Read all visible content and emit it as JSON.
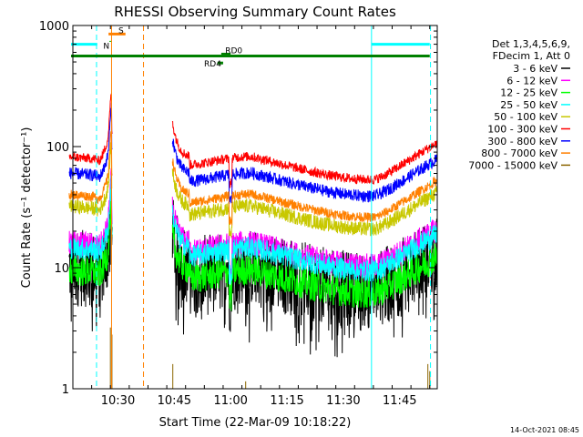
{
  "chart_data": {
    "type": "line",
    "title": "RHESSI Observing Summary Count Rates",
    "xlabel": "Start Time (22-Mar-09 10:18:22)",
    "ylabel": "Count Rate (s⁻¹ detector⁻¹)",
    "yscale": "log",
    "ylim": [
      1,
      1000
    ],
    "xlim_minutes": [
      0,
      97
    ],
    "x_ticks": [
      {
        "minute": 12,
        "label": "10:30"
      },
      {
        "minute": 27,
        "label": "10:45"
      },
      {
        "minute": 42,
        "label": "11:00"
      },
      {
        "minute": 57,
        "label": "11:15"
      },
      {
        "minute": 72,
        "label": "11:30"
      },
      {
        "minute": 87,
        "label": "11:45"
      }
    ],
    "y_ticks": [
      {
        "value": 1,
        "label": "1"
      },
      {
        "value": 10,
        "label": "10"
      },
      {
        "value": 100,
        "label": "100"
      },
      {
        "value": 1000,
        "label": "1000"
      }
    ],
    "legend": {
      "header1": "Det 1,3,4,5,6,9,",
      "header2": "FDecim 1, Att 0",
      "placement": "right"
    },
    "series": [
      {
        "name": "3 - 6 keV",
        "color": "#000000",
        "level": 10.0,
        "noise": 0.32,
        "spiky": true
      },
      {
        "name": "6 - 12 keV",
        "color": "#ff00ff",
        "level": 16.0,
        "noise": 0.1
      },
      {
        "name": "12 - 25 keV",
        "color": "#00ff00",
        "level": 9.5,
        "noise": 0.13
      },
      {
        "name": "25 - 50 keV",
        "color": "#00ffff",
        "level": 14.5,
        "noise": 0.09
      },
      {
        "name": "50 - 100 keV",
        "color": "#c8c800",
        "level": 32.0,
        "noise": 0.06
      },
      {
        "name": "100 - 300 keV",
        "color": "#ff0000",
        "level": 82.0,
        "noise": 0.04
      },
      {
        "name": "300 - 800 keV",
        "color": "#0000ff",
        "level": 60.0,
        "noise": 0.05
      },
      {
        "name": "800 - 7000 keV",
        "color": "#ff8000",
        "level": 40.0,
        "noise": 0.04
      },
      {
        "name": "7000 - 15000 keV",
        "color": "#8b6500",
        "level": 1.0,
        "noise": 0.0
      }
    ],
    "gaps": [
      [
        6.5,
        26.5
      ]
    ],
    "flags": [
      {
        "label": "",
        "color": "#00ffff",
        "value": 700,
        "x": [
          -1,
          6.5
        ]
      },
      {
        "label": "",
        "color": "#00ffff",
        "value": 700,
        "x": [
          79.5,
          95
        ]
      },
      {
        "label": "S",
        "color": "#ff8000",
        "value": 850,
        "x": [
          9.5,
          14
        ]
      },
      {
        "label": "N",
        "color": "#00c000",
        "value": 740,
        "x": [
          9.7,
          10.2
        ]
      },
      {
        "label": "",
        "color": "#008000",
        "value": 560,
        "x": [
          -1,
          95
        ]
      },
      {
        "label": "RD0",
        "color": "#008000",
        "value": 580,
        "x": [
          39.5,
          42
        ]
      },
      {
        "label": "RD4",
        "color": "#008000",
        "value": 490,
        "x": [
          38.5,
          40
        ]
      }
    ],
    "vlines": [
      {
        "minute": 6.3,
        "color": "#00ffff",
        "dash": true
      },
      {
        "minute": 10.3,
        "color": "#ff8000",
        "dash": false
      },
      {
        "minute": 18.8,
        "color": "#ff8000",
        "dash": true
      },
      {
        "minute": 79.5,
        "color": "#00ffff",
        "dash": false
      },
      {
        "minute": 95.2,
        "color": "#00ffff",
        "dash": true
      }
    ]
  },
  "footer": {
    "timestamp": "14-Oct-2021 08:45"
  }
}
